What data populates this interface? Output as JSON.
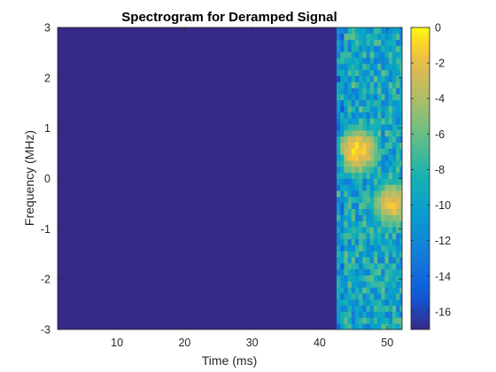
{
  "chart_data": {
    "type": "heatmap",
    "title": "Spectrogram for Deramped Signal",
    "xlabel": "Time (ms)",
    "ylabel": "Frequency (MHz)",
    "xlim": [
      1.2,
      52.2
    ],
    "ylim": [
      -3,
      3
    ],
    "x_ticks": [
      10,
      20,
      30,
      40,
      50
    ],
    "y_ticks": [
      -3,
      -2,
      -1,
      0,
      1,
      2,
      3
    ],
    "colorbar": {
      "clim": [
        -17,
        0
      ],
      "ticks": [
        0,
        -2,
        -4,
        -6,
        -8,
        -10,
        -12,
        -14,
        -16
      ],
      "colormap": "parula"
    },
    "background_level_db": -17,
    "signal_onset_ms": 42.5,
    "peaks": [
      {
        "time_ms": 45.5,
        "frequency_mhz": 0.55,
        "level_db": -1
      },
      {
        "time_ms": 51.0,
        "frequency_mhz": -0.5,
        "level_db": -2
      }
    ],
    "grid": false
  }
}
